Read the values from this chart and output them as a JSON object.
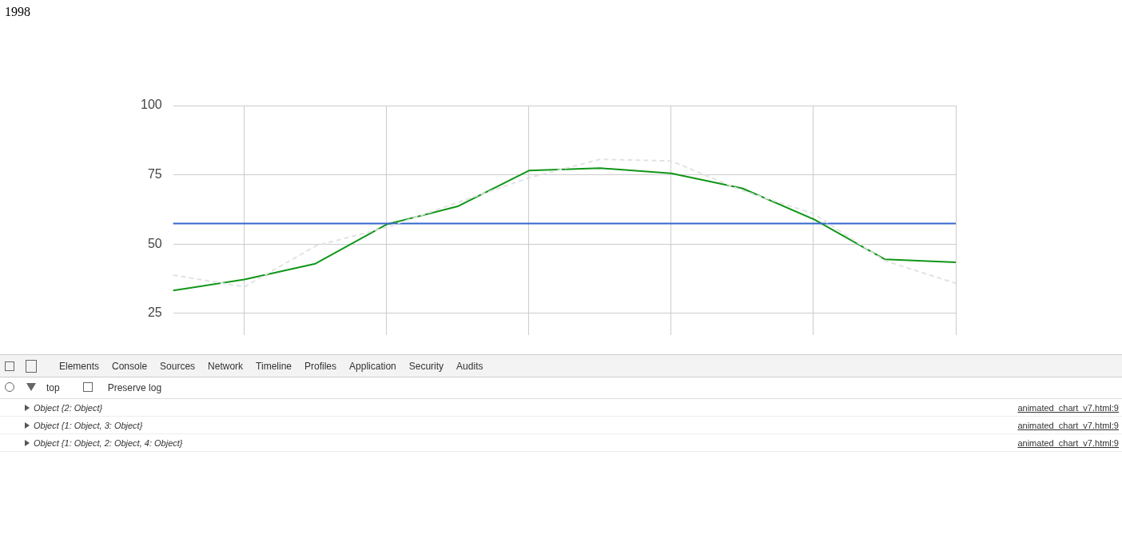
{
  "chart_data": {
    "type": "line",
    "title": "1998",
    "categories": [
      null,
      null,
      null,
      null,
      null,
      null,
      null,
      null,
      null,
      null,
      null,
      null
    ],
    "series": [
      {
        "color": "#e3e3e3",
        "line_style": "dashed",
        "values": [
          38.8,
          34.5,
          49.3,
          56,
          65,
          73.9,
          80.6,
          80,
          69.3,
          61,
          44,
          35.8
        ]
      },
      {
        "color": "#3366cc",
        "values": [
          57.4,
          57.4,
          57.4,
          57.4,
          57.4,
          57.4,
          57.4,
          57.4,
          57.4,
          57.4,
          57.4,
          57.4
        ]
      },
      {
        "color": "#109618",
        "values": [
          33.2,
          37.2,
          42.9,
          57.1,
          63.6,
          76.5,
          77.4,
          75.5,
          70.1,
          59,
          44.5,
          43.4
        ]
      }
    ],
    "ylim": [
      17,
      100
    ],
    "yticks": [
      25,
      50,
      75,
      100
    ],
    "grid": true,
    "legend": false,
    "marker": "none",
    "line_style": "solid",
    "tick_labels": "y",
    "annotations": [
      "Elements",
      "Console",
      "Sources",
      "Network",
      "Timeline",
      "Profiles",
      "Application",
      "Security",
      "Audits",
      "top",
      "Preserve log",
      "Object {2: Object}",
      "Object {1: Object, 3: Object}",
      "Object {1: Object, 2: Object, 4: Object}",
      "animated_chart_v7.html:9",
      "animated_chart_v7.html:9",
      "animated_chart_v7.html:9"
    ]
  }
}
